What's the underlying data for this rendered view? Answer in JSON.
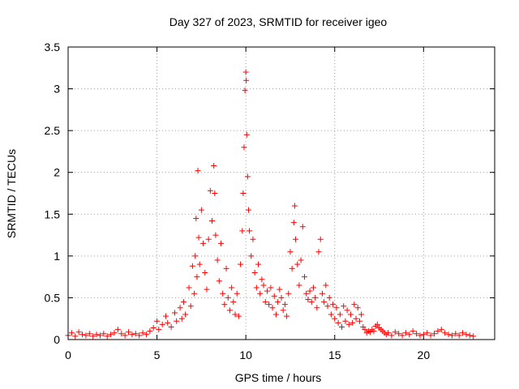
{
  "chart_data": {
    "type": "scatter",
    "title": "Day 327 of 2023, SRMTID for receiver igeo",
    "xlabel": "GPS time / hours",
    "ylabel": "SRMTID / TECUs",
    "xlim": [
      0,
      24
    ],
    "ylim": [
      0,
      3.5
    ],
    "xticks": [
      "0",
      "5",
      "10",
      "15",
      "20"
    ],
    "yticks": [
      "0",
      "0.5",
      "1",
      "1.5",
      "2",
      "2.5",
      "3",
      "3.5"
    ],
    "grid": true,
    "marker": "+",
    "marker_color": "#ff0000",
    "series": [
      {
        "name": "SRMTID",
        "points": [
          [
            0.0,
            0.05
          ],
          [
            0.2,
            0.08
          ],
          [
            0.4,
            0.04
          ],
          [
            0.6,
            0.09
          ],
          [
            0.8,
            0.06
          ],
          [
            1.0,
            0.05
          ],
          [
            1.2,
            0.07
          ],
          [
            1.4,
            0.04
          ],
          [
            1.6,
            0.06
          ],
          [
            1.8,
            0.05
          ],
          [
            2.0,
            0.07
          ],
          [
            2.2,
            0.04
          ],
          [
            2.4,
            0.06
          ],
          [
            2.6,
            0.08
          ],
          [
            2.8,
            0.12
          ],
          [
            3.0,
            0.07
          ],
          [
            3.2,
            0.05
          ],
          [
            3.4,
            0.09
          ],
          [
            3.6,
            0.06
          ],
          [
            3.8,
            0.07
          ],
          [
            4.0,
            0.05
          ],
          [
            4.2,
            0.08
          ],
          [
            4.4,
            0.06
          ],
          [
            4.6,
            0.1
          ],
          [
            4.8,
            0.14
          ],
          [
            5.0,
            0.22
          ],
          [
            5.1,
            0.12
          ],
          [
            5.3,
            0.18
          ],
          [
            5.5,
            0.28
          ],
          [
            5.6,
            0.2
          ],
          [
            5.8,
            0.15
          ],
          [
            6.0,
            0.32
          ],
          [
            6.1,
            0.22
          ],
          [
            6.3,
            0.38
          ],
          [
            6.4,
            0.25
          ],
          [
            6.5,
            0.45
          ],
          [
            6.6,
            0.3
          ],
          [
            6.8,
            0.62
          ],
          [
            6.9,
            0.4
          ],
          [
            7.0,
            0.88
          ],
          [
            7.1,
            0.55
          ],
          [
            7.15,
            1.0
          ],
          [
            7.2,
            1.45
          ],
          [
            7.25,
            0.75
          ],
          [
            7.3,
            2.02
          ],
          [
            7.35,
            1.22
          ],
          [
            7.4,
            0.9
          ],
          [
            7.5,
            1.55
          ],
          [
            7.6,
            1.15
          ],
          [
            7.7,
            0.8
          ],
          [
            7.8,
            0.6
          ],
          [
            7.9,
            1.2
          ],
          [
            8.0,
            1.78
          ],
          [
            8.1,
            1.42
          ],
          [
            8.2,
            2.08
          ],
          [
            8.25,
            1.75
          ],
          [
            8.3,
            1.25
          ],
          [
            8.4,
            0.95
          ],
          [
            8.5,
            0.7
          ],
          [
            8.6,
            1.15
          ],
          [
            8.7,
            0.55
          ],
          [
            8.8,
            0.42
          ],
          [
            8.9,
            0.85
          ],
          [
            9.0,
            0.5
          ],
          [
            9.1,
            0.35
          ],
          [
            9.2,
            0.62
          ],
          [
            9.3,
            0.45
          ],
          [
            9.4,
            0.3
          ],
          [
            9.5,
            0.55
          ],
          [
            9.6,
            0.28
          ],
          [
            9.7,
            0.9
          ],
          [
            9.8,
            1.3
          ],
          [
            9.85,
            1.75
          ],
          [
            9.9,
            2.3
          ],
          [
            9.95,
            2.98
          ],
          [
            10.0,
            3.2
          ],
          [
            10.02,
            3.1
          ],
          [
            10.05,
            2.45
          ],
          [
            10.1,
            1.95
          ],
          [
            10.15,
            1.55
          ],
          [
            10.2,
            1.3
          ],
          [
            10.3,
            1.0
          ],
          [
            10.4,
            1.2
          ],
          [
            10.5,
            0.8
          ],
          [
            10.6,
            0.62
          ],
          [
            10.7,
            0.9
          ],
          [
            10.8,
            0.55
          ],
          [
            10.9,
            0.72
          ],
          [
            11.0,
            0.65
          ],
          [
            11.1,
            0.45
          ],
          [
            11.2,
            0.58
          ],
          [
            11.3,
            0.42
          ],
          [
            11.4,
            0.62
          ],
          [
            11.5,
            0.38
          ],
          [
            11.6,
            0.52
          ],
          [
            11.7,
            0.3
          ],
          [
            11.8,
            0.45
          ],
          [
            11.9,
            0.6
          ],
          [
            12.0,
            0.5
          ],
          [
            12.1,
            0.35
          ],
          [
            12.2,
            0.42
          ],
          [
            12.3,
            0.28
          ],
          [
            12.4,
            0.55
          ],
          [
            12.5,
            1.05
          ],
          [
            12.6,
            0.85
          ],
          [
            12.7,
            1.4
          ],
          [
            12.75,
            1.6
          ],
          [
            12.8,
            1.2
          ],
          [
            12.9,
            0.9
          ],
          [
            13.0,
            0.65
          ],
          [
            13.1,
            0.95
          ],
          [
            13.2,
            1.35
          ],
          [
            13.3,
            0.75
          ],
          [
            13.4,
            0.55
          ],
          [
            13.5,
            0.48
          ],
          [
            13.6,
            0.58
          ],
          [
            13.7,
            0.45
          ],
          [
            13.8,
            0.62
          ],
          [
            13.9,
            0.5
          ],
          [
            14.0,
            0.38
          ],
          [
            14.1,
            1.05
          ],
          [
            14.2,
            1.2
          ],
          [
            14.3,
            0.55
          ],
          [
            14.4,
            0.45
          ],
          [
            14.5,
            0.65
          ],
          [
            14.6,
            0.4
          ],
          [
            14.7,
            0.5
          ],
          [
            14.8,
            0.3
          ],
          [
            14.9,
            0.42
          ],
          [
            15.0,
            0.25
          ],
          [
            15.1,
            0.38
          ],
          [
            15.2,
            0.2
          ],
          [
            15.3,
            0.3
          ],
          [
            15.4,
            0.15
          ],
          [
            15.5,
            0.4
          ],
          [
            15.6,
            0.22
          ],
          [
            15.7,
            0.35
          ],
          [
            15.8,
            0.18
          ],
          [
            15.9,
            0.3
          ],
          [
            16.0,
            0.2
          ],
          [
            16.1,
            0.42
          ],
          [
            16.2,
            0.25
          ],
          [
            16.3,
            0.38
          ],
          [
            16.4,
            0.22
          ],
          [
            16.5,
            0.3
          ],
          [
            16.6,
            0.15
          ],
          [
            16.7,
            0.12
          ],
          [
            16.8,
            0.08
          ],
          [
            16.9,
            0.1
          ],
          [
            17.0,
            0.09
          ],
          [
            17.1,
            0.12
          ],
          [
            17.2,
            0.1
          ],
          [
            17.3,
            0.16
          ],
          [
            17.4,
            0.18
          ],
          [
            17.5,
            0.14
          ],
          [
            17.6,
            0.12
          ],
          [
            17.7,
            0.1
          ],
          [
            17.8,
            0.08
          ],
          [
            17.9,
            0.06
          ],
          [
            18.0,
            0.08
          ],
          [
            18.2,
            0.05
          ],
          [
            18.4,
            0.09
          ],
          [
            18.6,
            0.07
          ],
          [
            18.8,
            0.05
          ],
          [
            19.0,
            0.08
          ],
          [
            19.2,
            0.06
          ],
          [
            19.4,
            0.1
          ],
          [
            19.6,
            0.07
          ],
          [
            19.8,
            0.05
          ],
          [
            20.0,
            0.06
          ],
          [
            20.2,
            0.08
          ],
          [
            20.4,
            0.05
          ],
          [
            20.6,
            0.07
          ],
          [
            20.8,
            0.1
          ],
          [
            21.0,
            0.12
          ],
          [
            21.2,
            0.08
          ],
          [
            21.4,
            0.06
          ],
          [
            21.6,
            0.05
          ],
          [
            21.8,
            0.07
          ],
          [
            22.0,
            0.05
          ],
          [
            22.2,
            0.08
          ],
          [
            22.4,
            0.06
          ],
          [
            22.6,
            0.05
          ],
          [
            22.8,
            0.04
          ]
        ]
      }
    ]
  }
}
